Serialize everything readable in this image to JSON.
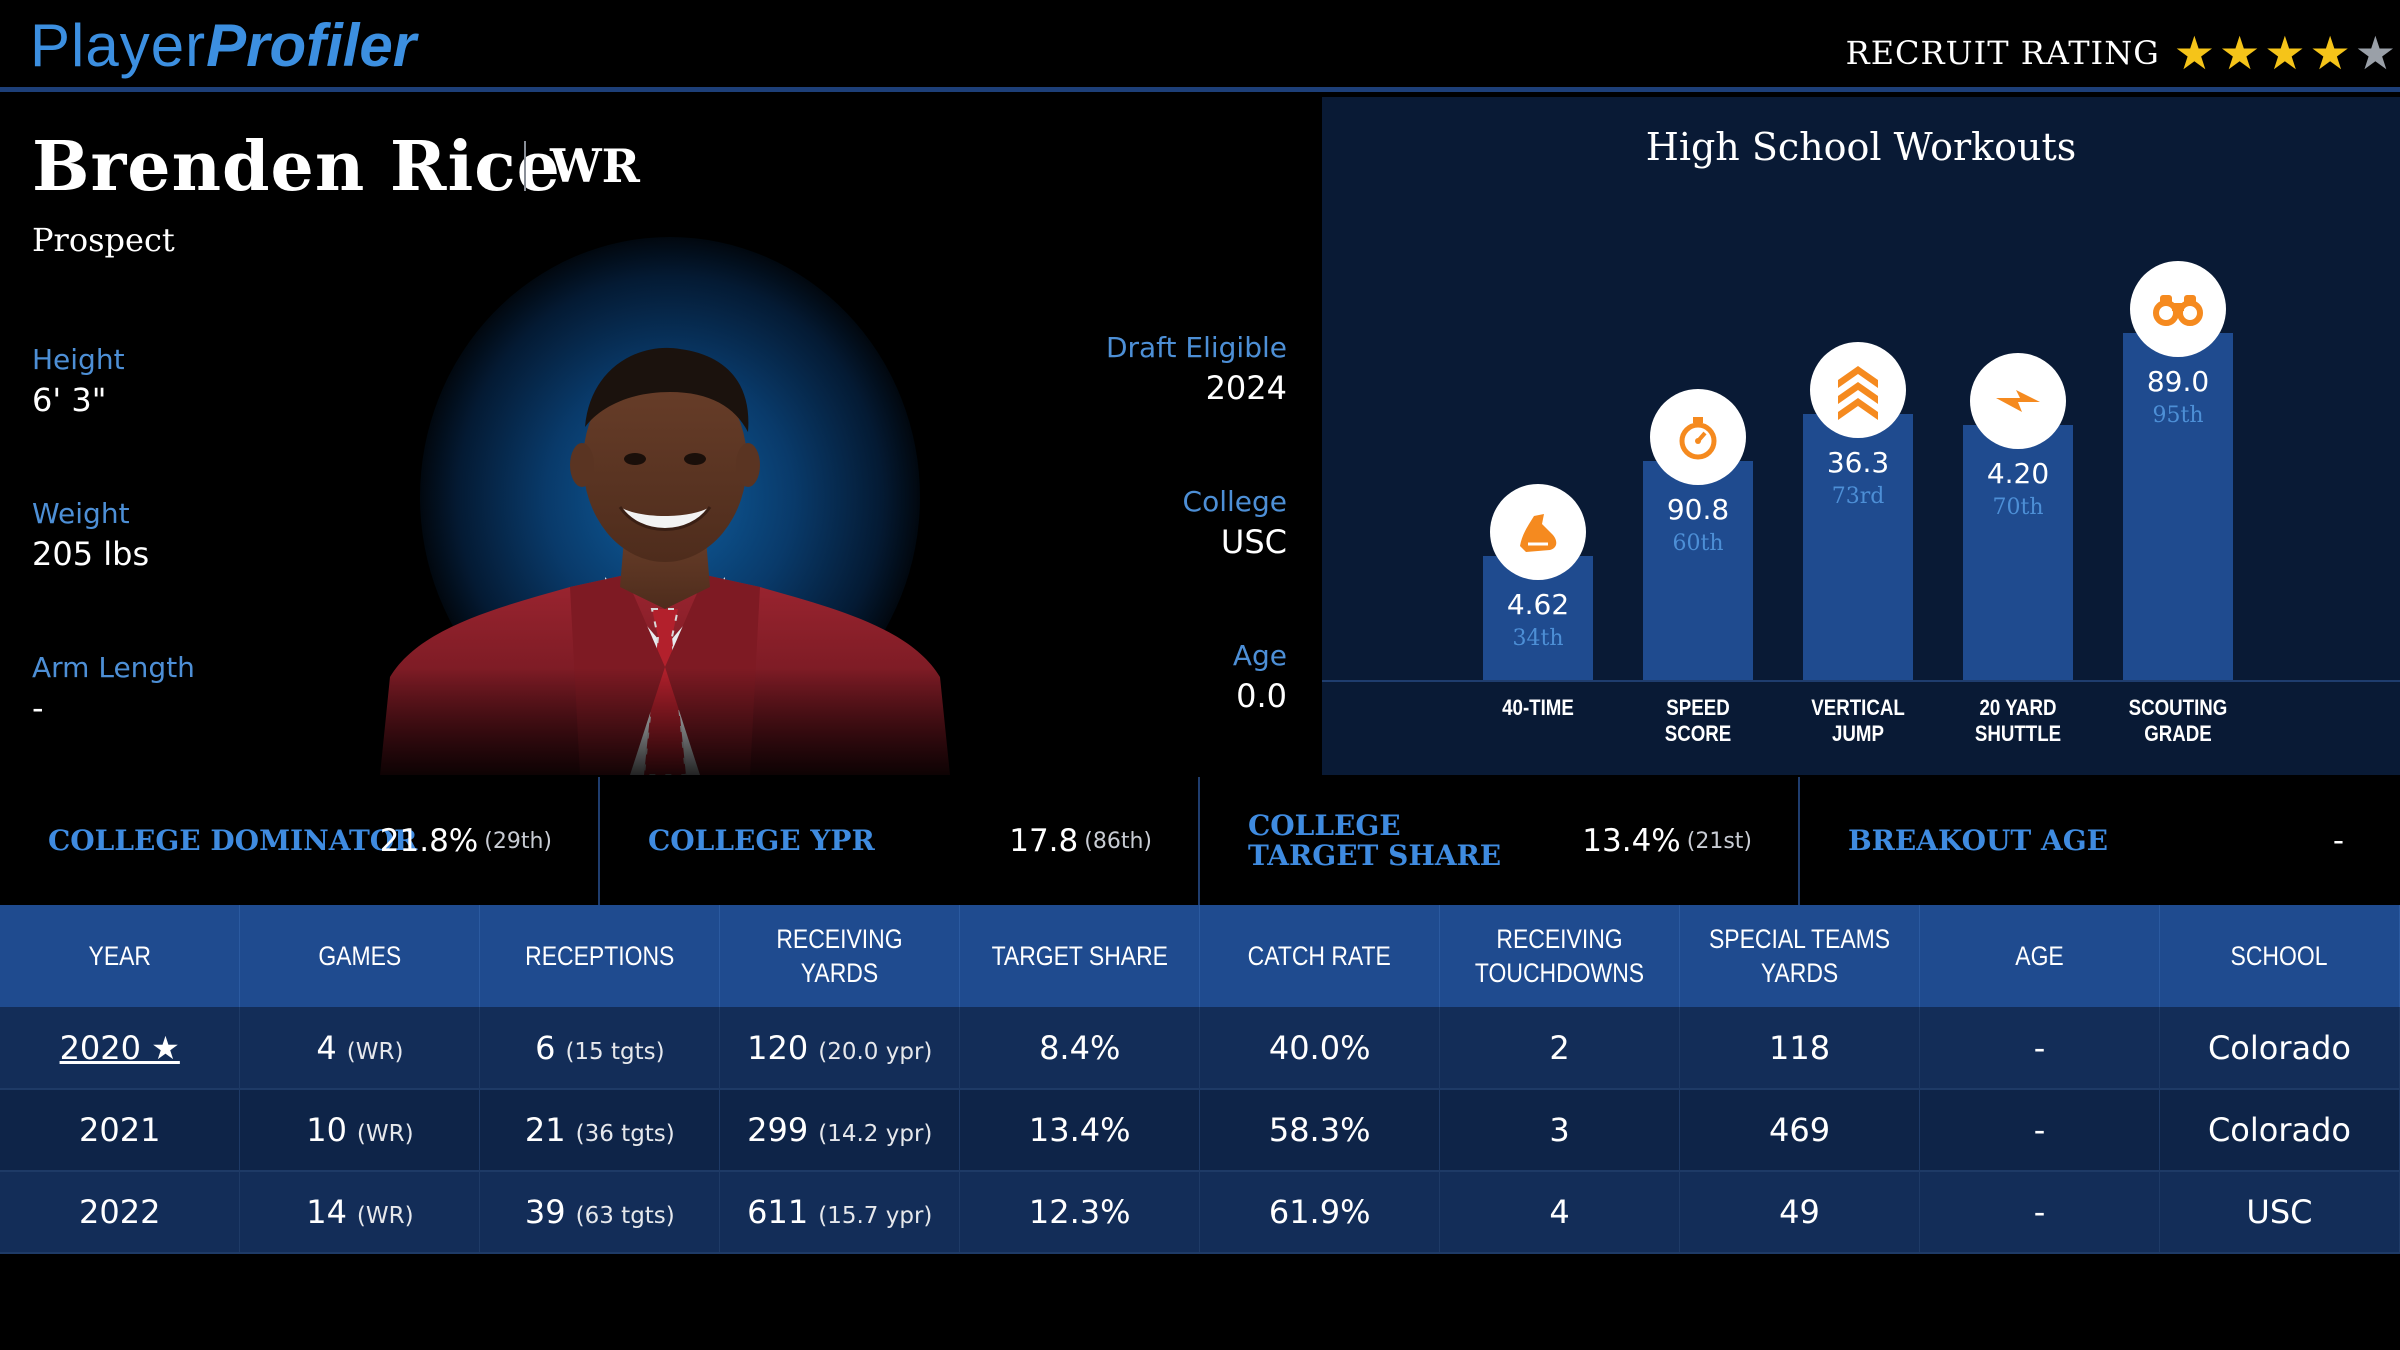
{
  "header": {
    "logo_part1": "Player",
    "logo_part2": "Profiler",
    "recruit_label": "RECRUIT RATING",
    "stars_filled": 4,
    "stars_total": 5,
    "star_color": "#f5c419"
  },
  "player": {
    "name": "Brenden Rice",
    "position": "WR",
    "status": "Prospect"
  },
  "bio_left": [
    {
      "label": "Height",
      "value": "6' 3\""
    },
    {
      "label": "Weight",
      "value": "205 lbs"
    },
    {
      "label": "Arm Length",
      "value": "-"
    }
  ],
  "bio_right": [
    {
      "label": "Draft Eligible",
      "value": "2024"
    },
    {
      "label": "College",
      "value": "USC"
    },
    {
      "label": "Age",
      "value": "0.0"
    }
  ],
  "workouts": {
    "title": "High School Workouts",
    "accent": "#f58a1f",
    "items": [
      {
        "category_line1": "40-TIME",
        "category_line2": "",
        "value": "4.62",
        "percentile": "34th",
        "percentile_num": 34,
        "icon": "running-shoe-icon"
      },
      {
        "category_line1": "SPEED",
        "category_line2": "SCORE",
        "value": "90.8",
        "percentile": "60th",
        "percentile_num": 60,
        "icon": "stopwatch-icon"
      },
      {
        "category_line1": "VERTICAL",
        "category_line2": "JUMP",
        "value": "36.3",
        "percentile": "73rd",
        "percentile_num": 73,
        "icon": "chevrons-up-icon"
      },
      {
        "category_line1": "20 YARD",
        "category_line2": "SHUTTLE",
        "value": "4.20",
        "percentile": "70th",
        "percentile_num": 70,
        "icon": "lightning-icon"
      },
      {
        "category_line1": "SCOUTING",
        "category_line2": "GRADE",
        "value": "89.0",
        "percentile": "95th",
        "percentile_num": 95,
        "icon": "binoculars-icon"
      }
    ]
  },
  "metrics": [
    {
      "label": "COLLEGE DOMINATOR",
      "value": "21.8%",
      "pct": "(29th)"
    },
    {
      "label": "COLLEGE YPR",
      "value": "17.8",
      "pct": "(86th)"
    },
    {
      "label": "COLLEGE TARGET SHARE",
      "value": "13.4%",
      "pct": "(21st)"
    },
    {
      "label": "BREAKOUT AGE",
      "value": "-",
      "pct": ""
    }
  ],
  "stats": {
    "headers": [
      [
        "YEAR",
        ""
      ],
      [
        "GAMES",
        ""
      ],
      [
        "RECEPTIONS",
        ""
      ],
      [
        "RECEIVING YARDS",
        ""
      ],
      [
        "TARGET SHARE",
        ""
      ],
      [
        "CATCH RATE",
        ""
      ],
      [
        "RECEIVING",
        "TOUCHDOWNS"
      ],
      [
        "SPECIAL TEAMS",
        "YARDS"
      ],
      [
        "AGE",
        ""
      ],
      [
        "SCHOOL",
        ""
      ]
    ],
    "rows": [
      {
        "year": "2020 ★",
        "games": "4",
        "games_sub": "(WR)",
        "rec": "6",
        "rec_sub": "(15 tgts)",
        "yds": "120",
        "yds_sub": "(20.0 ypr)",
        "share": "8.4%",
        "catch": "40.0%",
        "td": "2",
        "st": "118",
        "age": "-",
        "school": "Colorado"
      },
      {
        "year": "2021",
        "games": "10",
        "games_sub": "(WR)",
        "rec": "21",
        "rec_sub": "(36 tgts)",
        "yds": "299",
        "yds_sub": "(14.2 ypr)",
        "share": "13.4%",
        "catch": "58.3%",
        "td": "3",
        "st": "469",
        "age": "-",
        "school": "Colorado"
      },
      {
        "year": "2022",
        "games": "14",
        "games_sub": "(WR)",
        "rec": "39",
        "rec_sub": "(63 tgts)",
        "yds": "611",
        "yds_sub": "(15.7 ypr)",
        "share": "12.3%",
        "catch": "61.9%",
        "td": "4",
        "st": "49",
        "age": "-",
        "school": "USC"
      }
    ]
  }
}
